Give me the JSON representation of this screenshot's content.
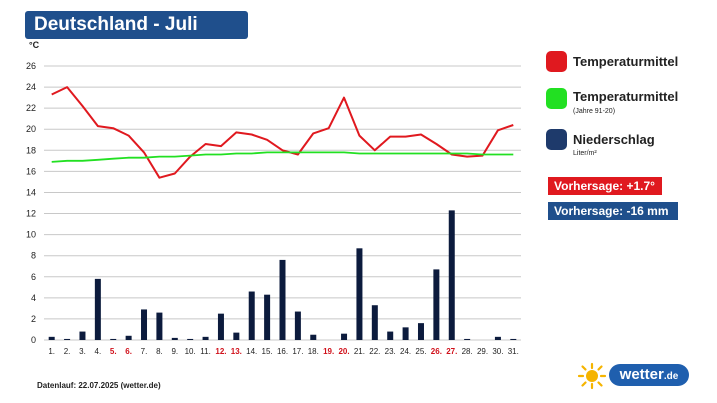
{
  "title": "Deutschland - Juli",
  "footer": "Datenlauf: 22.07.2025 (wetter.de)",
  "logo": {
    "text": "wetter",
    "suffix": ".de",
    "icon": "sun-icon"
  },
  "legend": {
    "temp": {
      "label": "Temperaturmittel",
      "color": "#e0191f"
    },
    "normal": {
      "label": "Temperaturmittel",
      "sub": "(Jahre 91-20)",
      "color": "#22e022"
    },
    "precip": {
      "label": "Niederschlag",
      "sub": "Liter/m²",
      "color": "#1e3a6b"
    }
  },
  "forecasts": {
    "temp": {
      "text": "Vorhersage: +1.7°",
      "color": "#e0191f"
    },
    "precip": {
      "text": "Vorhersage: -16 mm",
      "color": "#1f4f8c"
    }
  },
  "chart_data": {
    "type": "line",
    "ylabel": "°C",
    "ylim": [
      0,
      26
    ],
    "yticks": [
      0,
      2,
      4,
      6,
      8,
      10,
      12,
      14,
      16,
      18,
      20,
      22,
      24,
      26
    ],
    "grid": true,
    "categories": [
      "1.",
      "2.",
      "3.",
      "4.",
      "5.",
      "6.",
      "7.",
      "8.",
      "9.",
      "10.",
      "11.",
      "12.",
      "13.",
      "14.",
      "15.",
      "16.",
      "17.",
      "18.",
      "19.",
      "20.",
      "21.",
      "22.",
      "23.",
      "24.",
      "25.",
      "26.",
      "27.",
      "28.",
      "29.",
      "30.",
      "31."
    ],
    "weekend_days": [
      5,
      6,
      12,
      13,
      19,
      20,
      26,
      27
    ],
    "weekend_color": "#d0101a",
    "series": [
      {
        "name": "Temperaturmittel",
        "type": "line",
        "color": "#e0191f",
        "values": [
          23.3,
          24.0,
          22.2,
          20.3,
          20.1,
          19.4,
          17.8,
          15.4,
          15.8,
          17.4,
          18.6,
          18.4,
          19.7,
          19.5,
          19.0,
          18.0,
          17.6,
          19.6,
          20.1,
          23.0,
          19.4,
          18.0,
          19.3,
          19.3,
          19.5,
          18.6,
          17.6,
          17.4,
          17.5,
          19.9,
          20.4
        ]
      },
      {
        "name": "Temperaturmittel (Jahre 91-20)",
        "type": "line",
        "color": "#22e022",
        "values": [
          16.9,
          17.0,
          17.0,
          17.1,
          17.2,
          17.3,
          17.3,
          17.4,
          17.4,
          17.5,
          17.6,
          17.6,
          17.7,
          17.7,
          17.8,
          17.8,
          17.8,
          17.8,
          17.8,
          17.8,
          17.7,
          17.7,
          17.7,
          17.7,
          17.7,
          17.7,
          17.7,
          17.7,
          17.6,
          17.6,
          17.6
        ]
      },
      {
        "name": "Niederschlag",
        "type": "bar",
        "color": "#0c1b3d",
        "values": [
          0.3,
          0.1,
          0.8,
          5.8,
          0.1,
          0.4,
          2.9,
          2.6,
          0.2,
          0.1,
          0.3,
          2.5,
          0.7,
          4.6,
          4.3,
          7.6,
          2.7,
          0.5,
          0.0,
          0.6,
          8.7,
          3.3,
          0.8,
          1.2,
          1.6,
          6.7,
          12.3,
          0.1,
          0.0,
          0.3,
          0.1
        ]
      }
    ]
  }
}
